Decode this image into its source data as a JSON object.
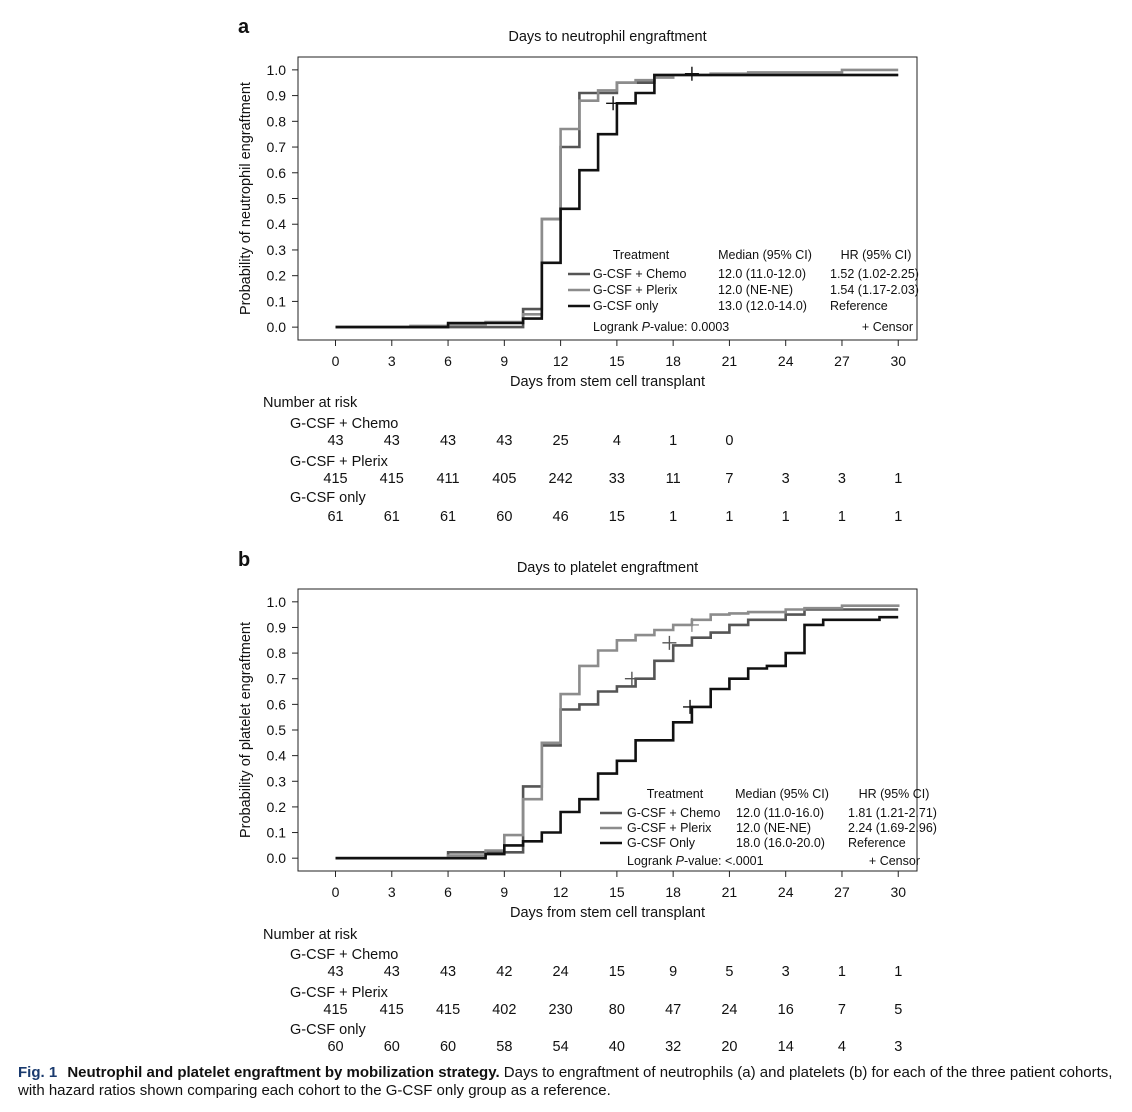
{
  "caption": {
    "label": "Fig. 1",
    "title": "Neutrophil and platelet engraftment by mobilization strategy.",
    "text": "Days to engraftment of neutrophils (a) and platelets (b) for each of the three patient cohorts, with hazard ratios shown comparing each cohort to the G-CSF only group as a reference."
  },
  "colors": {
    "chemo": "#555555",
    "plerix": "#8c8c8c",
    "only": "#111111"
  },
  "chart_data": [
    {
      "panel_label": "a",
      "type": "line",
      "title": "Days to neutrophil engraftment",
      "xlabel": "Days from stem cell transplant",
      "ylabel": "Probability of neutrophil engraftment",
      "xlim": [
        -2,
        31
      ],
      "ylim": [
        -0.05,
        1.05
      ],
      "xticks": [
        0,
        3,
        6,
        9,
        12,
        15,
        18,
        21,
        24,
        27,
        30
      ],
      "yticks": [
        "0.0",
        "0.1",
        "0.2",
        "0.3",
        "0.4",
        "0.5",
        "0.6",
        "0.7",
        "0.8",
        "0.9",
        "1.0"
      ],
      "legend": {
        "placement": "bottom-right",
        "headers": [
          "Treatment",
          "Median (95% CI)",
          "HR (95% CI)"
        ],
        "rows": [
          {
            "name": "G-CSF + Chemo",
            "median": "12.0 (11.0-12.0)",
            "hr": "1.52 (1.02-2.25)",
            "color_key": "chemo"
          },
          {
            "name": "G-CSF + Plerix",
            "median": "12.0 (NE-NE)",
            "hr": "1.54 (1.17-2.03)",
            "color_key": "plerix"
          },
          {
            "name": "G-CSF only",
            "median": "13.0 (12.0-14.0)",
            "hr": "Reference",
            "color_key": "only"
          }
        ],
        "logrank_prefix": "Logrank ",
        "logrank_p": "P",
        "logrank_suffix": "-value: 0.0003",
        "censor": "+ Censor"
      },
      "series": [
        {
          "name": "G-CSF + Chemo",
          "color_key": "chemo",
          "x": [
            0,
            10,
            11,
            12,
            13,
            14,
            15,
            16,
            17,
            18,
            19,
            30
          ],
          "y": [
            0,
            0.07,
            0.42,
            0.7,
            0.91,
            0.91,
            0.95,
            0.95,
            0.98,
            0.98,
            0.98,
            0.98
          ],
          "censor": []
        },
        {
          "name": "G-CSF + Plerix",
          "color_key": "plerix",
          "x": [
            0,
            4,
            6,
            8,
            10,
            11,
            12,
            13,
            14,
            15,
            16,
            17,
            18,
            20,
            22,
            27,
            30
          ],
          "y": [
            0,
            0.005,
            0.01,
            0.02,
            0.05,
            0.42,
            0.77,
            0.88,
            0.92,
            0.95,
            0.96,
            0.97,
            0.98,
            0.985,
            0.99,
            1.0,
            1.0
          ],
          "censor": []
        },
        {
          "name": "G-CSF only",
          "color_key": "only",
          "x": [
            0,
            6,
            10,
            11,
            12,
            13,
            14,
            15,
            16,
            17,
            30
          ],
          "y": [
            0,
            0.016,
            0.033,
            0.25,
            0.46,
            0.61,
            0.75,
            0.87,
            0.91,
            0.98,
            0.98
          ],
          "censor": [
            [
              14.8,
              0.87
            ],
            [
              19,
              0.985
            ]
          ]
        }
      ],
      "risk_table": {
        "title": "Number at risk",
        "rows": [
          {
            "name": "G-CSF + Chemo",
            "counts": [
              "43",
              "43",
              "43",
              "43",
              "25",
              "4",
              "1",
              "0"
            ]
          },
          {
            "name": "G-CSF + Plerix",
            "counts": [
              "415",
              "415",
              "411",
              "405",
              "242",
              "33",
              "11",
              "7",
              "3",
              "3",
              "1"
            ]
          },
          {
            "name": "G-CSF only",
            "counts": [
              "61",
              "61",
              "61",
              "60",
              "46",
              "15",
              "1",
              "1",
              "1",
              "1",
              "1"
            ]
          }
        ]
      }
    },
    {
      "panel_label": "b",
      "type": "line",
      "title": "Days to platelet engraftment",
      "xlabel": "Days from stem cell transplant",
      "ylabel": "Probability of platelet engraftment",
      "xlim": [
        -2,
        31
      ],
      "ylim": [
        -0.05,
        1.05
      ],
      "xticks": [
        0,
        3,
        6,
        9,
        12,
        15,
        18,
        21,
        24,
        27,
        30
      ],
      "yticks": [
        "0.0",
        "0.1",
        "0.2",
        "0.3",
        "0.4",
        "0.5",
        "0.6",
        "0.7",
        "0.8",
        "0.9",
        "1.0"
      ],
      "legend": {
        "placement": "bottom-right",
        "headers": [
          "Treatment",
          "Median (95% CI)",
          "HR (95% CI)"
        ],
        "rows": [
          {
            "name": "G-CSF + Chemo",
            "median": "12.0 (11.0-16.0)",
            "hr": "1.81 (1.21-2.71)",
            "color_key": "chemo"
          },
          {
            "name": "G-CSF + Plerix",
            "median": "12.0 (NE-NE)",
            "hr": "2.24 (1.69-2.96)",
            "color_key": "plerix"
          },
          {
            "name": "G-CSF Only",
            "median": "18.0 (16.0-20.0)",
            "hr": "Reference",
            "color_key": "only"
          }
        ],
        "logrank_prefix": "Logrank ",
        "logrank_p": "P",
        "logrank_suffix": "-value: <.0001",
        "censor": "+ Censor"
      },
      "series": [
        {
          "name": "G-CSF + Chemo",
          "color_key": "chemo",
          "x": [
            0,
            6,
            8,
            10,
            11,
            12,
            13,
            14,
            15,
            16,
            17,
            18,
            19,
            20,
            21,
            22,
            24,
            25,
            30
          ],
          "y": [
            0,
            0.023,
            0.023,
            0.28,
            0.44,
            0.58,
            0.6,
            0.65,
            0.67,
            0.7,
            0.77,
            0.83,
            0.86,
            0.88,
            0.91,
            0.93,
            0.95,
            0.97,
            0.97
          ],
          "censor": [
            [
              15.8,
              0.7
            ],
            [
              17.8,
              0.84
            ]
          ]
        },
        {
          "name": "G-CSF + Plerix",
          "color_key": "plerix",
          "x": [
            0,
            6,
            8,
            9,
            10,
            11,
            12,
            13,
            14,
            15,
            16,
            17,
            18,
            19,
            20,
            21,
            22,
            24,
            25,
            27,
            30
          ],
          "y": [
            0,
            0.01,
            0.03,
            0.09,
            0.23,
            0.45,
            0.64,
            0.75,
            0.81,
            0.85,
            0.87,
            0.89,
            0.91,
            0.93,
            0.95,
            0.955,
            0.96,
            0.97,
            0.975,
            0.985,
            0.99
          ],
          "censor": [
            [
              19,
              0.91
            ]
          ]
        },
        {
          "name": "G-CSF Only",
          "color_key": "only",
          "x": [
            0,
            8,
            9,
            10,
            11,
            12,
            13,
            14,
            15,
            16,
            17,
            18,
            19,
            20,
            21,
            22,
            23,
            24,
            25,
            26,
            29,
            30
          ],
          "y": [
            0,
            0.016,
            0.05,
            0.066,
            0.1,
            0.18,
            0.23,
            0.33,
            0.38,
            0.46,
            0.46,
            0.53,
            0.59,
            0.66,
            0.7,
            0.74,
            0.75,
            0.8,
            0.91,
            0.93,
            0.94,
            0.94
          ],
          "censor": [
            [
              18.9,
              0.59
            ]
          ]
        }
      ],
      "risk_table": {
        "title": "Number at risk",
        "rows": [
          {
            "name": "G-CSF + Chemo",
            "counts": [
              "43",
              "43",
              "43",
              "42",
              "24",
              "15",
              "9",
              "5",
              "3",
              "1",
              "1"
            ]
          },
          {
            "name": "G-CSF + Plerix",
            "counts": [
              "415",
              "415",
              "415",
              "402",
              "230",
              "80",
              "47",
              "24",
              "16",
              "7",
              "5"
            ]
          },
          {
            "name": "G-CSF only",
            "counts": [
              "60",
              "60",
              "60",
              "58",
              "54",
              "40",
              "32",
              "20",
              "14",
              "4",
              "3"
            ]
          }
        ]
      }
    }
  ]
}
